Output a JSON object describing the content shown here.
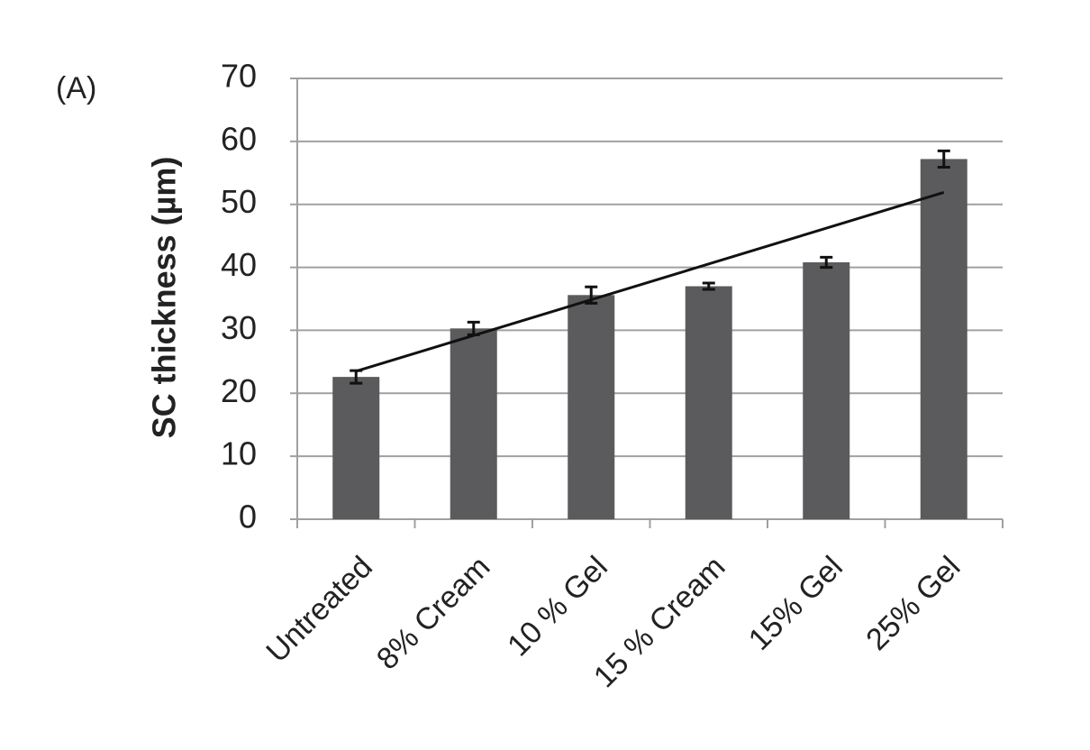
{
  "chart_data": {
    "type": "bar",
    "annotation": "(A)",
    "y_label": "SC thickness (µm)",
    "categories": [
      "Untreated",
      "8% Cream",
      "10 % Gel",
      "15 % Cream",
      "15% Gel",
      "25% Gel"
    ],
    "values": [
      22.6,
      30.3,
      35.6,
      37,
      40.8,
      57.2
    ],
    "errors": [
      1.0,
      1.0,
      1.3,
      0.5,
      0.8,
      1.3
    ],
    "color": "#5b5b5d",
    "trendline": [
      23.5,
      51.9
    ],
    "ylim": [
      0,
      70
    ],
    "yticks": [
      0,
      10,
      20,
      30,
      40,
      50,
      60,
      70
    ],
    "grid": true
  }
}
